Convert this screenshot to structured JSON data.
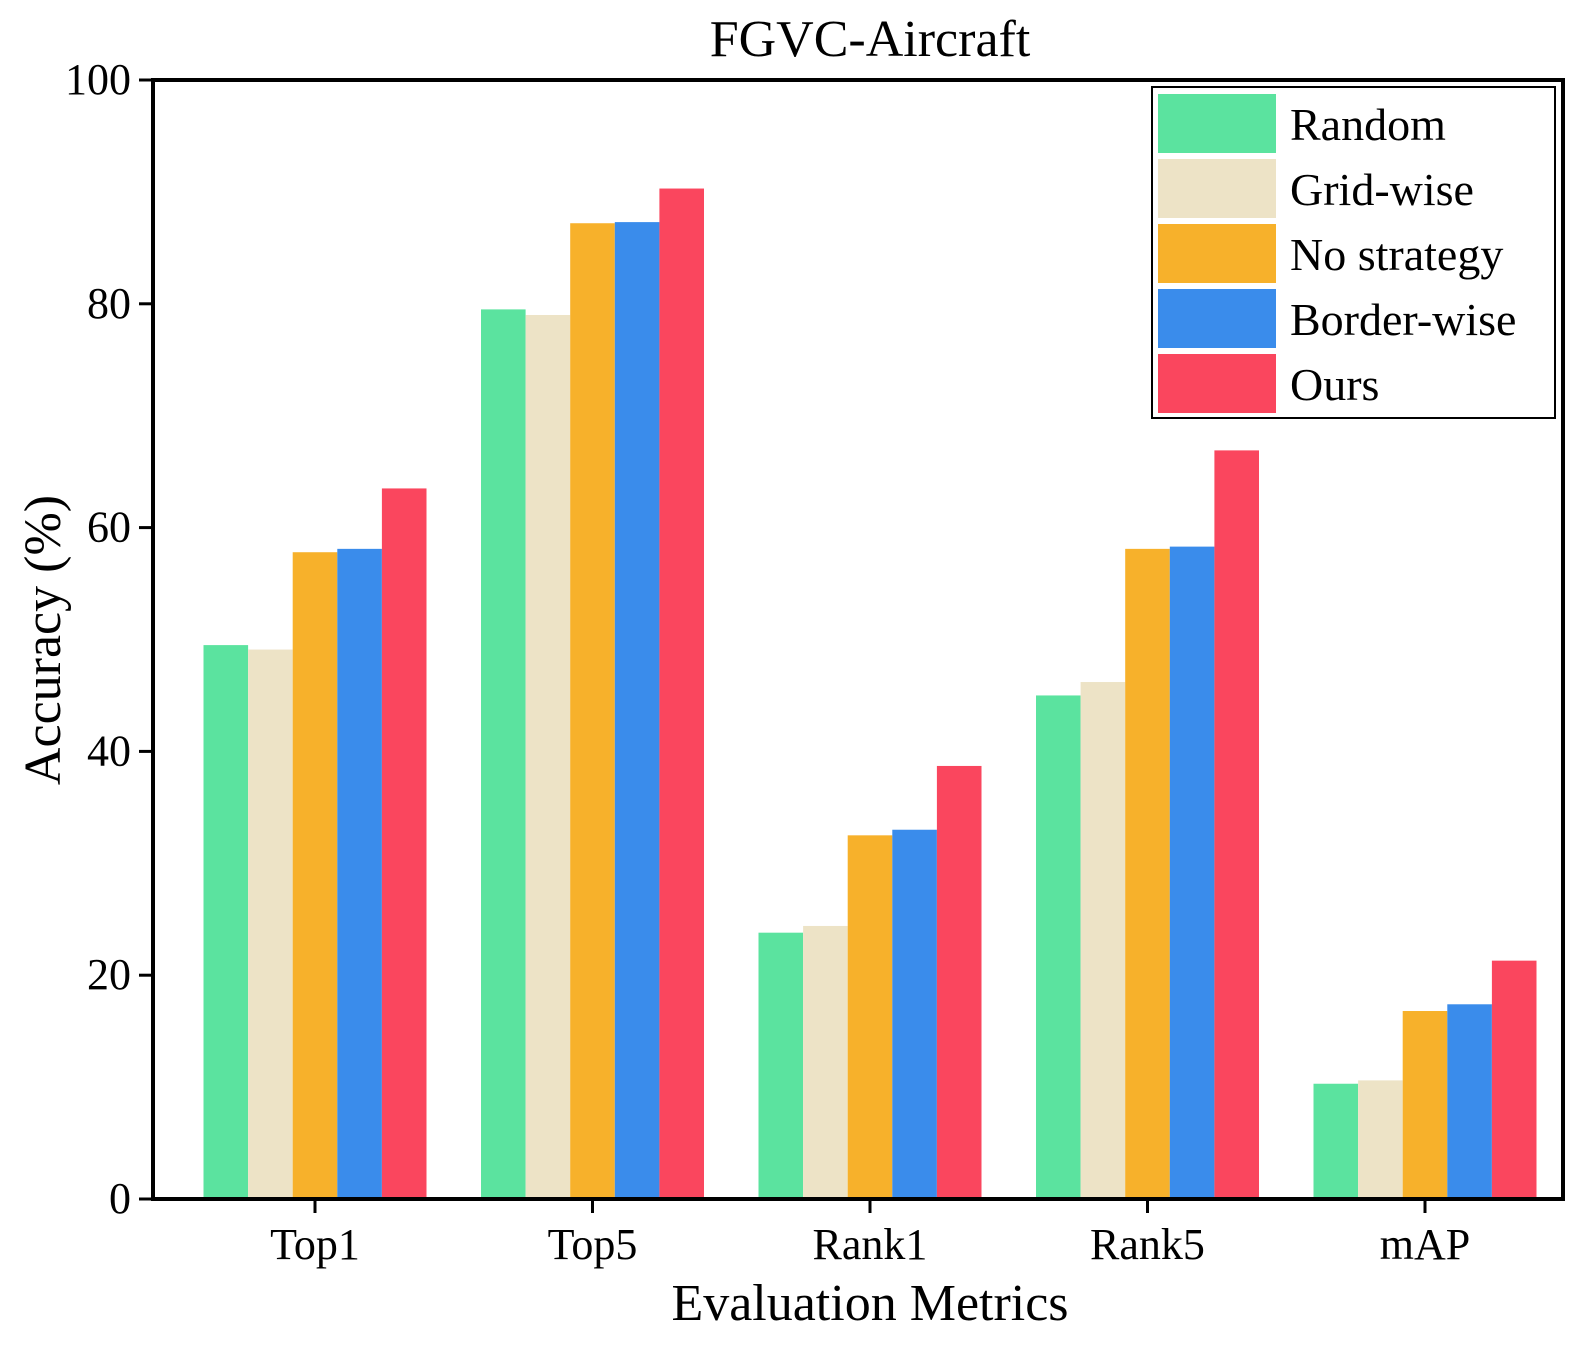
{
  "chart_data": {
    "type": "bar",
    "title": "FGVC-Aircraft",
    "xlabel": "Evaluation Metrics",
    "ylabel": "Accuracy (%)",
    "ylim": [
      0,
      100
    ],
    "yticks": [
      0,
      20,
      40,
      60,
      80,
      100
    ],
    "grid": false,
    "legend_position": "top-right",
    "categories": [
      "Top1",
      "Top5",
      "Rank1",
      "Rank5",
      "mAP"
    ],
    "series": [
      {
        "name": "Random",
        "color": "#5be39f",
        "values": [
          49.5,
          79.5,
          23.8,
          45.0,
          10.3
        ]
      },
      {
        "name": "Grid-wise",
        "color": "#ede3c6",
        "values": [
          49.1,
          79.0,
          24.4,
          46.2,
          10.6
        ]
      },
      {
        "name": "No strategy",
        "color": "#f7b12b",
        "values": [
          57.8,
          87.2,
          32.5,
          58.1,
          16.8
        ]
      },
      {
        "name": "Border-wise",
        "color": "#3a8ceb",
        "values": [
          58.1,
          87.3,
          33.0,
          58.3,
          17.4
        ]
      },
      {
        "name": "Ours",
        "color": "#fa465e",
        "values": [
          63.5,
          90.3,
          38.7,
          66.9,
          21.3
        ]
      }
    ]
  }
}
